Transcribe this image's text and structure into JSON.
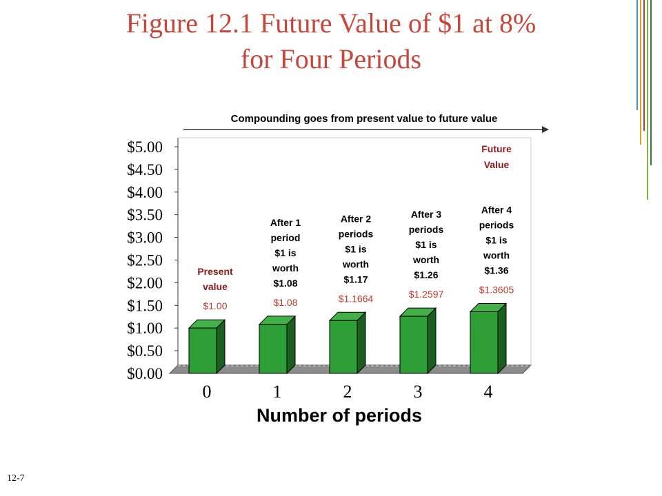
{
  "slide": {
    "title_line1": "Figure 12.1 Future Value of $1 at 8%",
    "title_line2": "for Four Periods",
    "page_number": "12-7"
  },
  "colors": {
    "title": "#c8453a",
    "bar_front": "#2e9e36",
    "bar_side": "#1b5e20",
    "bar_top": "#43b04a",
    "floor": "#8c8c8c",
    "value_label": "#c0392b",
    "note_red": "#8b1a1a"
  },
  "chart_data": {
    "type": "bar",
    "title": "",
    "xlabel": "Number of periods",
    "ylabel": "",
    "categories": [
      "0",
      "1",
      "2",
      "3",
      "4"
    ],
    "values": [
      1.0,
      1.08,
      1.1664,
      1.2597,
      1.3605
    ],
    "value_labels": [
      "$1.00",
      "$1.08",
      "$1.1664",
      "$1.2597",
      "$1.3605"
    ],
    "ylim": [
      0,
      5
    ],
    "yticks": [
      "$0.00",
      "$0.50",
      "$1.00",
      "$1.50",
      "$2.00",
      "$2.50",
      "$3.00",
      "$3.50",
      "$4.00",
      "$4.50",
      "$5.00"
    ],
    "grid": false,
    "arrow_caption": "Compounding goes from present value to future value",
    "notes": [
      {
        "lines": [
          "Present",
          "value"
        ],
        "style": "red"
      },
      {
        "lines": [
          "After 1",
          "period",
          "$1 is",
          "worth",
          "$1.08"
        ],
        "style": "black"
      },
      {
        "lines": [
          "After 2",
          "periods",
          "$1 is",
          "worth",
          "$1.17"
        ],
        "style": "black"
      },
      {
        "lines": [
          "After 3",
          "periods",
          "$1 is",
          "worth",
          "$1.26"
        ],
        "style": "black"
      },
      {
        "lines": [
          "After 4",
          "periods",
          "$1 is",
          "worth",
          "$1.36"
        ],
        "style": "black"
      }
    ],
    "future_value_label": [
      "Future",
      "Value"
    ]
  }
}
